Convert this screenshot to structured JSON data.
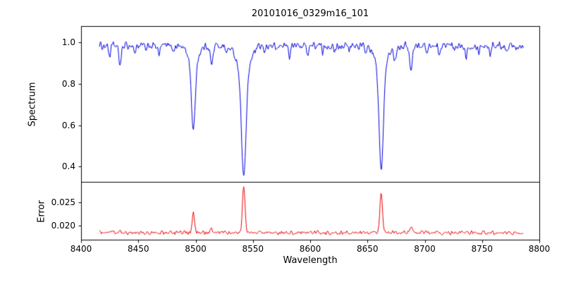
{
  "figure": {
    "background": "#ffffff",
    "axis_color": "#000000",
    "text_color": "#000000"
  },
  "chart_data": {
    "type": "line",
    "title": "20101016_0329m16_101",
    "xlabel": "Wavelength",
    "legend": null,
    "grid": false,
    "x_range": [
      8400,
      8800
    ],
    "x_data_range": [
      8416,
      8786
    ],
    "x_ticks": [
      8400,
      8450,
      8500,
      8550,
      8600,
      8650,
      8700,
      8750,
      8800
    ],
    "x_tick_labels": [
      "8400",
      "8450",
      "8500",
      "8550",
      "8600",
      "8650",
      "8700",
      "8750",
      "8800"
    ],
    "panels": [
      {
        "ylabel": "Spectrum",
        "ylim": [
          0.325,
          1.08
        ],
        "yticks": [
          0.4,
          0.6,
          0.8,
          1.0
        ],
        "ytick_labels": [
          "0.4",
          "0.6",
          "0.8",
          "1.0"
        ],
        "line_color": "#0000dd",
        "continuum": 0.985,
        "noise_amplitude": 0.022,
        "absorption_lines": [
          {
            "center": 8498,
            "depth": 0.33,
            "sigma": 2.2
          },
          {
            "center": 8498,
            "depth": 0.09,
            "sigma": 6.0
          },
          {
            "center": 8542,
            "depth": 0.51,
            "sigma": 2.8
          },
          {
            "center": 8542,
            "depth": 0.13,
            "sigma": 8.0
          },
          {
            "center": 8662,
            "depth": 0.49,
            "sigma": 2.6
          },
          {
            "center": 8662,
            "depth": 0.12,
            "sigma": 7.0
          },
          {
            "center": 8425,
            "depth": 0.05,
            "sigma": 1.2
          },
          {
            "center": 8434,
            "depth": 0.09,
            "sigma": 1.6
          },
          {
            "center": 8447,
            "depth": 0.04,
            "sigma": 1.0
          },
          {
            "center": 8457,
            "depth": 0.03,
            "sigma": 1.0
          },
          {
            "center": 8468,
            "depth": 0.05,
            "sigma": 1.2
          },
          {
            "center": 8481,
            "depth": 0.03,
            "sigma": 1.0
          },
          {
            "center": 8514,
            "depth": 0.1,
            "sigma": 1.5
          },
          {
            "center": 8527,
            "depth": 0.04,
            "sigma": 1.0
          },
          {
            "center": 8560,
            "depth": 0.04,
            "sigma": 1.0
          },
          {
            "center": 8571,
            "depth": 0.03,
            "sigma": 1.0
          },
          {
            "center": 8582,
            "depth": 0.05,
            "sigma": 1.2
          },
          {
            "center": 8598,
            "depth": 0.04,
            "sigma": 1.0
          },
          {
            "center": 8611,
            "depth": 0.04,
            "sigma": 1.0
          },
          {
            "center": 8621,
            "depth": 0.04,
            "sigma": 1.0
          },
          {
            "center": 8634,
            "depth": 0.03,
            "sigma": 1.0
          },
          {
            "center": 8648,
            "depth": 0.04,
            "sigma": 1.0
          },
          {
            "center": 8674,
            "depth": 0.07,
            "sigma": 1.3
          },
          {
            "center": 8688,
            "depth": 0.13,
            "sigma": 1.6
          },
          {
            "center": 8702,
            "depth": 0.04,
            "sigma": 1.0
          },
          {
            "center": 8713,
            "depth": 0.05,
            "sigma": 1.2
          },
          {
            "center": 8726,
            "depth": 0.03,
            "sigma": 1.0
          },
          {
            "center": 8736,
            "depth": 0.05,
            "sigma": 1.2
          },
          {
            "center": 8747,
            "depth": 0.03,
            "sigma": 1.0
          },
          {
            "center": 8757,
            "depth": 0.04,
            "sigma": 1.0
          },
          {
            "center": 8772,
            "depth": 0.03,
            "sigma": 1.0
          }
        ]
      },
      {
        "ylabel": "Error",
        "ylim": [
          0.017,
          0.0294
        ],
        "yticks": [
          0.02,
          0.025
        ],
        "ytick_labels": [
          "0.020",
          "0.025"
        ],
        "line_color": "#ee0000",
        "baseline": 0.0185,
        "noise_amplitude": 0.0005,
        "emission_peaks": [
          {
            "center": 8434,
            "height": 0.0006,
            "sigma": 1.2
          },
          {
            "center": 8498,
            "height": 0.0042,
            "sigma": 1.3
          },
          {
            "center": 8514,
            "height": 0.0009,
            "sigma": 1.2
          },
          {
            "center": 8542,
            "height": 0.01,
            "sigma": 1.6
          },
          {
            "center": 8662,
            "height": 0.0088,
            "sigma": 1.5
          },
          {
            "center": 8688,
            "height": 0.0013,
            "sigma": 1.2
          }
        ]
      }
    ]
  }
}
